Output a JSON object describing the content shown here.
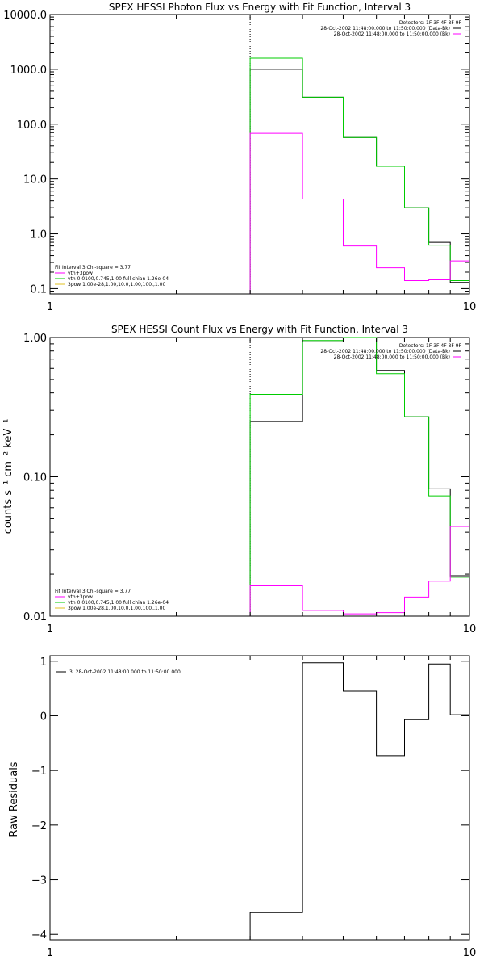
{
  "chart_data": [
    {
      "type": "line",
      "title": "SPEX HESSI Photon Flux vs Energy with Fit Function, Interval 3",
      "xlabel": "",
      "ylabel": "",
      "xscale": "log",
      "yscale": "log",
      "xlim": [
        1,
        10
      ],
      "ylim": [
        0.08,
        10000
      ],
      "x_ticks": [
        1,
        10
      ],
      "x_tick_labels": [
        "1",
        "10"
      ],
      "y_ticks": [
        0.1,
        1,
        10,
        100,
        1000,
        10000
      ],
      "y_tick_labels": [
        "0.1",
        "1.0",
        "10.0",
        "100.0",
        "1000.0",
        "10000.0"
      ],
      "vline_x": 3,
      "legend_top_right": {
        "lines": [
          "Detectors: 1F 3F 4F 8F 9F",
          "28-Oct-2002 11:48:00.000 to 11:50:00.000 (Data-Bk)",
          "28-Oct-2002 11:48:00.000 to 11:50:00.000 (Bk)"
        ],
        "colors": [
          "none",
          "#000000",
          "#ff00ff"
        ]
      },
      "legend_bottom_left": {
        "lines": [
          "Fit Interval 3   Chi-square = 3.77",
          "vth+3pow",
          "vth 0.0100,0.745,1.00  full chian 1.26e-04",
          "3pow 1.00e-28,1.00,10.0,1.00,100.,1.00"
        ],
        "colors": [
          "none",
          "#ff00ff",
          "#00cc00",
          "#e0c020"
        ]
      },
      "bin_edges": [
        3,
        4,
        5,
        6,
        7,
        8,
        9,
        10
      ],
      "series": [
        {
          "color": "#000000",
          "values": [
            1000,
            310,
            57,
            17,
            3,
            0.7,
            0.13
          ]
        },
        {
          "color": "#00cc00",
          "values": [
            1600,
            310,
            57,
            17,
            3,
            0.62,
            0.14
          ]
        },
        {
          "color": "#ff00ff",
          "values": [
            68,
            4.3,
            0.6,
            0.24,
            0.14,
            0.145,
            0.32
          ]
        }
      ]
    },
    {
      "type": "line",
      "title": "SPEX HESSI Count Flux vs Energy with Fit Function, Interval 3",
      "xlabel": "",
      "ylabel": "counts s⁻¹ cm⁻² keV⁻¹",
      "xscale": "log",
      "yscale": "log",
      "xlim": [
        1,
        10
      ],
      "ylim": [
        0.01,
        1
      ],
      "x_ticks": [
        1,
        10
      ],
      "x_tick_labels": [
        "1",
        "10"
      ],
      "y_ticks": [
        0.01,
        0.1,
        1
      ],
      "y_tick_labels": [
        "0.01",
        "0.10",
        "1.00"
      ],
      "vline_x": 3,
      "legend_top_right": {
        "lines": [
          "Detectors: 1F 3F 4F 8F 9F",
          "28-Oct-2002 11:48:00.000 to 11:50:00.000 (Data-Bk)",
          "28-Oct-2002 11:48:00.000 to 11:50:00.000 (Bk)"
        ],
        "colors": [
          "none",
          "#000000",
          "#ff00ff"
        ]
      },
      "legend_bottom_left": {
        "lines": [
          "Fit Interval 3   Chi-square = 3.77",
          "vth+3pow",
          "vth 0.0100,0.745,1.00  full chian 1.26e-04",
          "3pow 1.00e-28,1.00,10.0,1.00,100.,1.00"
        ],
        "colors": [
          "none",
          "#ff00ff",
          "#00cc00",
          "#e0c020"
        ]
      },
      "bin_edges": [
        3,
        4,
        5,
        6,
        7,
        8,
        9,
        10
      ],
      "series": [
        {
          "color": "#000000",
          "values": [
            0.25,
            0.93,
            1.0,
            0.58,
            0.27,
            0.082,
            0.0195
          ]
        },
        {
          "color": "#00cc00",
          "values": [
            0.39,
            0.95,
            1.05,
            0.55,
            0.27,
            0.073,
            0.019
          ]
        },
        {
          "color": "#ff00ff",
          "values": [
            0.0165,
            0.011,
            0.0104,
            0.0106,
            0.0137,
            0.0178,
            0.044
          ]
        }
      ]
    },
    {
      "type": "line",
      "title": "",
      "xlabel": "",
      "ylabel": "Raw Residuals",
      "xscale": "log",
      "yscale": "linear",
      "xlim": [
        1,
        10
      ],
      "ylim": [
        -4.1,
        1.1
      ],
      "x_ticks": [
        1,
        10
      ],
      "x_tick_labels": [
        "1",
        "10"
      ],
      "y_ticks": [
        -4,
        -3,
        -2,
        -1,
        0,
        1
      ],
      "y_tick_labels": [
        "−4",
        "−3",
        "−2",
        "−1",
        "0",
        "1"
      ],
      "legend_top_left": {
        "lines": [
          "3, 28-Oct-2002 11:48:00.000 to 11:50:00.000"
        ],
        "colors": [
          "#000000"
        ]
      },
      "bin_edges": [
        3,
        4,
        5,
        6,
        7,
        8,
        9,
        10
      ],
      "series": [
        {
          "color": "#000000",
          "values": [
            -3.6,
            0.97,
            0.45,
            -0.73,
            -0.07,
            0.95,
            0.02
          ]
        }
      ]
    }
  ]
}
